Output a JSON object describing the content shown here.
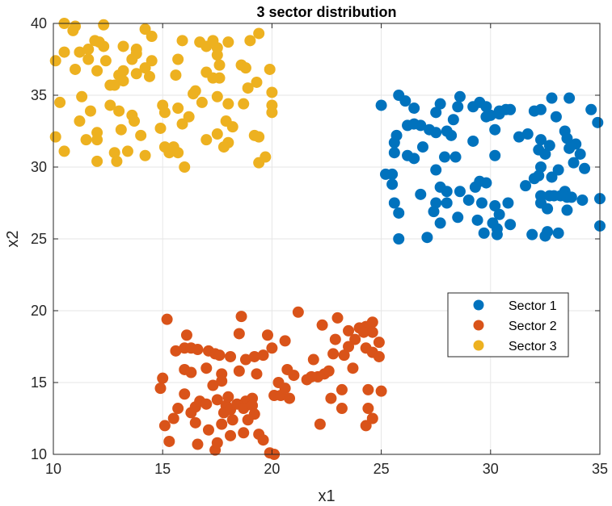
{
  "chart_data": {
    "type": "scatter",
    "title": "3 sector distribution",
    "xlabel": "x1",
    "ylabel": "x2",
    "xlim": [
      10,
      35
    ],
    "ylim": [
      10,
      40
    ],
    "xticks": [
      10,
      15,
      20,
      25,
      30,
      35
    ],
    "yticks": [
      10,
      15,
      20,
      25,
      30,
      35,
      40
    ],
    "grid": true,
    "legend_position": "right-middle",
    "series": [
      {
        "name": "Sector 1",
        "color": "#0072BD",
        "points": [
          [
            25.0,
            34.3
          ],
          [
            25.8,
            35.0
          ],
          [
            26.1,
            34.6
          ],
          [
            26.5,
            34.1
          ],
          [
            27.7,
            34.4
          ],
          [
            28.6,
            34.9
          ],
          [
            28.5,
            34.2
          ],
          [
            29.2,
            34.2
          ],
          [
            29.5,
            34.5
          ],
          [
            29.8,
            34.2
          ],
          [
            30.0,
            33.6
          ],
          [
            30.4,
            33.9
          ],
          [
            30.9,
            34.0
          ],
          [
            32.0,
            33.9
          ],
          [
            32.3,
            34.0
          ],
          [
            32.8,
            34.8
          ],
          [
            33.6,
            34.8
          ],
          [
            34.6,
            34.0
          ],
          [
            34.9,
            33.1
          ],
          [
            26.2,
            32.9
          ],
          [
            26.5,
            33.0
          ],
          [
            25.7,
            32.2
          ],
          [
            25.6,
            31.7
          ],
          [
            27.2,
            32.6
          ],
          [
            27.5,
            32.4
          ],
          [
            28.0,
            32.5
          ],
          [
            28.2,
            32.2
          ],
          [
            29.2,
            31.8
          ],
          [
            30.2,
            30.8
          ],
          [
            31.7,
            32.3
          ],
          [
            32.3,
            31.9
          ],
          [
            32.2,
            31.2
          ],
          [
            32.7,
            31.5
          ],
          [
            33.0,
            33.5
          ],
          [
            33.4,
            32.5
          ],
          [
            33.5,
            32.0
          ],
          [
            33.6,
            31.3
          ],
          [
            33.9,
            31.6
          ],
          [
            34.1,
            30.9
          ],
          [
            33.8,
            30.3
          ],
          [
            34.3,
            29.9
          ],
          [
            25.6,
            31.0
          ],
          [
            26.2,
            30.8
          ],
          [
            26.5,
            30.6
          ],
          [
            26.9,
            31.4
          ],
          [
            27.9,
            30.7
          ],
          [
            28.4,
            30.7
          ],
          [
            32.5,
            30.9
          ],
          [
            32.3,
            30.0
          ],
          [
            32.2,
            29.4
          ],
          [
            32.8,
            29.3
          ],
          [
            25.2,
            29.5
          ],
          [
            25.5,
            29.5
          ],
          [
            25.5,
            28.8
          ],
          [
            27.5,
            29.8
          ],
          [
            27.7,
            28.6
          ],
          [
            28.6,
            28.3
          ],
          [
            29.3,
            28.6
          ],
          [
            29.5,
            29.0
          ],
          [
            29.8,
            28.9
          ],
          [
            31.6,
            28.7
          ],
          [
            32.0,
            29.2
          ],
          [
            32.3,
            27.5
          ],
          [
            32.3,
            28.0
          ],
          [
            32.7,
            28.0
          ],
          [
            32.9,
            28.0
          ],
          [
            33.2,
            28.0
          ],
          [
            33.4,
            28.3
          ],
          [
            33.5,
            27.9
          ],
          [
            33.7,
            27.9
          ],
          [
            34.2,
            27.7
          ],
          [
            35.0,
            27.8
          ],
          [
            26.8,
            28.1
          ],
          [
            28.0,
            28.3
          ],
          [
            27.5,
            27.5
          ],
          [
            28.0,
            27.5
          ],
          [
            29.0,
            27.7
          ],
          [
            29.6,
            27.5
          ],
          [
            30.2,
            27.3
          ],
          [
            30.8,
            27.5
          ],
          [
            25.6,
            27.5
          ],
          [
            25.8,
            26.8
          ],
          [
            27.4,
            26.9
          ],
          [
            27.7,
            26.1
          ],
          [
            28.5,
            26.5
          ],
          [
            29.4,
            26.3
          ],
          [
            30.4,
            26.7
          ],
          [
            30.9,
            26.0
          ],
          [
            30.1,
            26.1
          ],
          [
            29.7,
            25.4
          ],
          [
            30.3,
            25.3
          ],
          [
            30.3,
            25.7
          ],
          [
            27.1,
            25.1
          ],
          [
            25.8,
            25.0
          ],
          [
            31.9,
            25.3
          ],
          [
            32.5,
            25.2
          ],
          [
            32.6,
            25.5
          ],
          [
            33.1,
            25.4
          ],
          [
            33.5,
            27.0
          ],
          [
            35.0,
            25.9
          ],
          [
            30.7,
            34.0
          ],
          [
            29.8,
            33.5
          ],
          [
            30.4,
            33.7
          ],
          [
            27.5,
            33.8
          ],
          [
            28.3,
            33.3
          ],
          [
            26.8,
            32.9
          ],
          [
            30.2,
            32.6
          ],
          [
            31.3,
            32.1
          ],
          [
            33.1,
            29.8
          ],
          [
            32.6,
            27.1
          ]
        ]
      },
      {
        "name": "Sector 2",
        "color": "#D95319",
        "points": [
          [
            15.2,
            19.4
          ],
          [
            18.6,
            19.6
          ],
          [
            21.2,
            19.9
          ],
          [
            22.3,
            19.0
          ],
          [
            23.0,
            19.5
          ],
          [
            24.3,
            18.9
          ],
          [
            24.6,
            19.2
          ],
          [
            24.0,
            18.8
          ],
          [
            23.5,
            18.6
          ],
          [
            24.2,
            18.5
          ],
          [
            24.6,
            18.5
          ],
          [
            16.1,
            18.3
          ],
          [
            18.5,
            18.4
          ],
          [
            19.8,
            18.3
          ],
          [
            20.6,
            17.9
          ],
          [
            22.9,
            18.0
          ],
          [
            23.8,
            18.0
          ],
          [
            24.9,
            17.8
          ],
          [
            15.6,
            17.2
          ],
          [
            16.0,
            17.4
          ],
          [
            16.3,
            17.4
          ],
          [
            16.6,
            17.3
          ],
          [
            17.1,
            17.2
          ],
          [
            17.4,
            17.0
          ],
          [
            17.6,
            16.9
          ],
          [
            18.1,
            16.8
          ],
          [
            18.8,
            16.6
          ],
          [
            19.2,
            16.8
          ],
          [
            19.6,
            16.9
          ],
          [
            20.0,
            17.4
          ],
          [
            21.9,
            16.6
          ],
          [
            22.8,
            17.0
          ],
          [
            23.3,
            16.9
          ],
          [
            24.3,
            17.4
          ],
          [
            24.6,
            17.1
          ],
          [
            24.9,
            16.8
          ],
          [
            23.7,
            16.0
          ],
          [
            23.5,
            17.5
          ],
          [
            16.0,
            15.9
          ],
          [
            16.3,
            15.7
          ],
          [
            17.0,
            16.0
          ],
          [
            17.7,
            15.6
          ],
          [
            18.5,
            15.8
          ],
          [
            19.3,
            15.6
          ],
          [
            20.3,
            15.0
          ],
          [
            20.7,
            15.9
          ],
          [
            21.0,
            15.5
          ],
          [
            21.6,
            15.2
          ],
          [
            22.1,
            15.4
          ],
          [
            22.4,
            15.6
          ],
          [
            22.6,
            15.8
          ],
          [
            23.2,
            14.5
          ],
          [
            14.9,
            14.6
          ],
          [
            15.0,
            15.3
          ],
          [
            17.3,
            14.8
          ],
          [
            17.9,
            13.4
          ],
          [
            18.8,
            13.7
          ],
          [
            19.1,
            13.9
          ],
          [
            20.1,
            14.1
          ],
          [
            20.4,
            14.1
          ],
          [
            20.6,
            14.6
          ],
          [
            20.8,
            13.9
          ],
          [
            21.8,
            15.4
          ],
          [
            22.7,
            13.9
          ],
          [
            24.4,
            14.5
          ],
          [
            25.0,
            14.4
          ],
          [
            15.5,
            12.5
          ],
          [
            15.7,
            13.2
          ],
          [
            16.3,
            12.9
          ],
          [
            16.5,
            13.3
          ],
          [
            16.7,
            13.7
          ],
          [
            17.0,
            13.5
          ],
          [
            17.5,
            13.8
          ],
          [
            17.8,
            12.9
          ],
          [
            18.1,
            13.1
          ],
          [
            18.4,
            13.5
          ],
          [
            18.7,
            13.2
          ],
          [
            19.1,
            13.4
          ],
          [
            19.2,
            12.8
          ],
          [
            18.9,
            12.4
          ],
          [
            18.2,
            12.4
          ],
          [
            17.7,
            12.1
          ],
          [
            17.1,
            11.7
          ],
          [
            16.5,
            12.2
          ],
          [
            15.1,
            12.0
          ],
          [
            15.3,
            10.9
          ],
          [
            16.6,
            10.7
          ],
          [
            17.4,
            10.3
          ],
          [
            17.5,
            10.8
          ],
          [
            18.1,
            11.3
          ],
          [
            18.7,
            11.5
          ],
          [
            19.4,
            11.4
          ],
          [
            19.6,
            11.0
          ],
          [
            19.9,
            10.1
          ],
          [
            20.1,
            10.0
          ],
          [
            22.2,
            12.1
          ],
          [
            23.2,
            13.2
          ],
          [
            24.3,
            12.0
          ],
          [
            24.6,
            12.5
          ],
          [
            24.4,
            13.2
          ],
          [
            17.7,
            15.1
          ],
          [
            18.0,
            14.0
          ],
          [
            16.0,
            14.2
          ]
        ]
      },
      {
        "name": "Sector 3",
        "color": "#EDB120",
        "points": [
          [
            10.5,
            40.0
          ],
          [
            11.0,
            39.8
          ],
          [
            12.3,
            39.9
          ],
          [
            10.9,
            39.5
          ],
          [
            11.9,
            38.8
          ],
          [
            12.1,
            38.7
          ],
          [
            14.2,
            39.6
          ],
          [
            14.5,
            39.1
          ],
          [
            11.2,
            38.0
          ],
          [
            11.6,
            38.2
          ],
          [
            12.3,
            38.4
          ],
          [
            13.2,
            38.4
          ],
          [
            13.8,
            38.2
          ],
          [
            15.9,
            38.8
          ],
          [
            16.7,
            38.7
          ],
          [
            17.0,
            38.4
          ],
          [
            17.3,
            38.8
          ],
          [
            18.0,
            38.7
          ],
          [
            17.5,
            38.3
          ],
          [
            19.0,
            38.8
          ],
          [
            19.4,
            39.3
          ],
          [
            10.1,
            37.4
          ],
          [
            10.5,
            38.0
          ],
          [
            11.6,
            37.5
          ],
          [
            12.4,
            37.4
          ],
          [
            13.6,
            37.5
          ],
          [
            13.8,
            37.9
          ],
          [
            14.2,
            36.9
          ],
          [
            14.5,
            37.4
          ],
          [
            15.7,
            37.5
          ],
          [
            17.5,
            37.8
          ],
          [
            17.6,
            37.1
          ],
          [
            18.6,
            37.1
          ],
          [
            18.8,
            36.9
          ],
          [
            19.9,
            36.8
          ],
          [
            11.0,
            36.8
          ],
          [
            12.0,
            36.7
          ],
          [
            13.0,
            36.4
          ],
          [
            13.2,
            36.7
          ],
          [
            13.8,
            36.5
          ],
          [
            14.4,
            36.3
          ],
          [
            15.6,
            36.4
          ],
          [
            17.0,
            36.6
          ],
          [
            17.3,
            36.2
          ],
          [
            17.6,
            36.2
          ],
          [
            18.9,
            35.5
          ],
          [
            19.3,
            35.9
          ],
          [
            16.5,
            35.3
          ],
          [
            16.4,
            35.1
          ],
          [
            12.8,
            35.7
          ],
          [
            13.2,
            36.0
          ],
          [
            12.6,
            35.7
          ],
          [
            10.3,
            34.5
          ],
          [
            11.7,
            33.9
          ],
          [
            12.6,
            34.3
          ],
          [
            13.0,
            33.9
          ],
          [
            13.6,
            33.6
          ],
          [
            15.0,
            34.3
          ],
          [
            15.7,
            34.1
          ],
          [
            16.8,
            34.5
          ],
          [
            17.5,
            34.9
          ],
          [
            18.0,
            34.4
          ],
          [
            18.7,
            34.4
          ],
          [
            20.0,
            34.3
          ],
          [
            20.0,
            35.2
          ],
          [
            20.0,
            33.8
          ],
          [
            12.0,
            32.4
          ],
          [
            12.0,
            31.9
          ],
          [
            13.1,
            32.6
          ],
          [
            13.7,
            33.2
          ],
          [
            14.0,
            32.2
          ],
          [
            14.9,
            32.7
          ],
          [
            15.9,
            33.0
          ],
          [
            16.2,
            33.5
          ],
          [
            18.2,
            32.8
          ],
          [
            19.2,
            32.2
          ],
          [
            19.4,
            32.1
          ],
          [
            10.1,
            32.1
          ],
          [
            10.5,
            31.1
          ],
          [
            11.2,
            33.2
          ],
          [
            11.5,
            31.9
          ],
          [
            12.8,
            31.0
          ],
          [
            13.4,
            31.1
          ],
          [
            15.1,
            31.4
          ],
          [
            15.3,
            31.0
          ],
          [
            15.5,
            31.4
          ],
          [
            15.7,
            31.0
          ],
          [
            17.0,
            31.9
          ],
          [
            17.5,
            32.3
          ],
          [
            18.0,
            31.7
          ],
          [
            17.8,
            31.4
          ],
          [
            19.4,
            30.3
          ],
          [
            19.7,
            30.7
          ],
          [
            12.0,
            30.4
          ],
          [
            12.9,
            30.4
          ],
          [
            16.0,
            30.0
          ],
          [
            14.2,
            30.8
          ],
          [
            11.3,
            34.9
          ],
          [
            15.1,
            33.8
          ],
          [
            17.9,
            33.2
          ]
        ]
      }
    ]
  }
}
